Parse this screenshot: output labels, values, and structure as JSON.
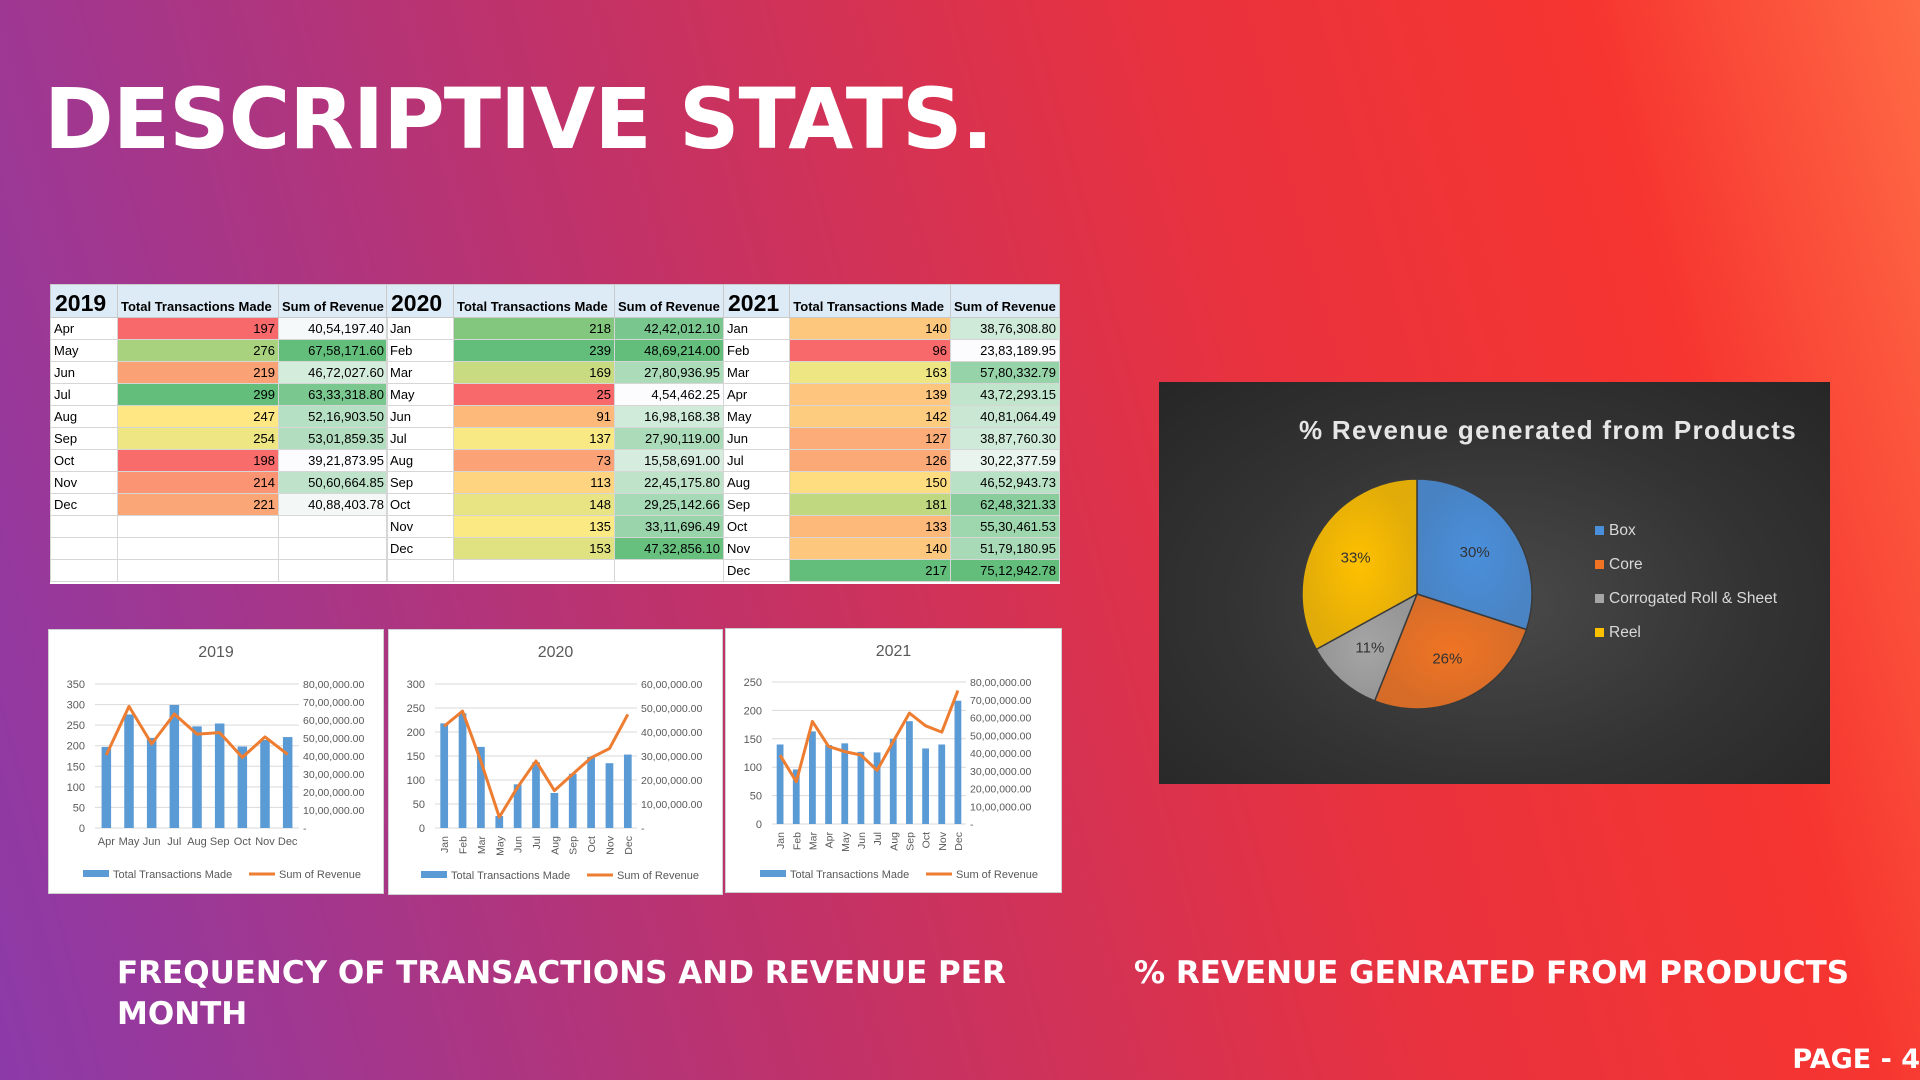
{
  "title": "DESCRIPTIVE STATS.",
  "caption_left": "FREQUENCY OF TRANSACTIONS AND REVENUE PER MONTH",
  "caption_right": "% REVENUE GENRATED FROM PRODUCTS",
  "page_label": "PAGE - 4",
  "table": {
    "col_tx": "Total Transactions Made",
    "col_rev": "Sum of Revenue",
    "years": [
      {
        "year": "2019",
        "rows": [
          [
            "Apr",
            197,
            "40,54,197.40"
          ],
          [
            "May",
            276,
            "67,58,171.60"
          ],
          [
            "Jun",
            219,
            "46,72,027.60"
          ],
          [
            "Jul",
            299,
            "63,33,318.80"
          ],
          [
            "Aug",
            247,
            "52,16,903.50"
          ],
          [
            "Sep",
            254,
            "53,01,859.35"
          ],
          [
            "Oct",
            198,
            "39,21,873.95"
          ],
          [
            "Nov",
            214,
            "50,60,664.85"
          ],
          [
            "Dec",
            221,
            "40,88,403.78"
          ]
        ]
      },
      {
        "year": "2020",
        "rows": [
          [
            "Jan",
            218,
            "42,42,012.10"
          ],
          [
            "Feb",
            239,
            "48,69,214.00"
          ],
          [
            "Mar",
            169,
            "27,80,936.95"
          ],
          [
            "May",
            25,
            "4,54,462.25"
          ],
          [
            "Jun",
            91,
            "16,98,168.38"
          ],
          [
            "Jul",
            137,
            "27,90,119.00"
          ],
          [
            "Aug",
            73,
            "15,58,691.00"
          ],
          [
            "Sep",
            113,
            "22,45,175.80"
          ],
          [
            "Oct",
            148,
            "29,25,142.66"
          ],
          [
            "Nov",
            135,
            "33,11,696.49"
          ],
          [
            "Dec",
            153,
            "47,32,856.10"
          ]
        ]
      },
      {
        "year": "2021",
        "rows": [
          [
            "Jan",
            140,
            "38,76,308.80"
          ],
          [
            "Feb",
            96,
            "23,83,189.95"
          ],
          [
            "Mar",
            163,
            "57,80,332.79"
          ],
          [
            "Apr",
            139,
            "43,72,293.15"
          ],
          [
            "May",
            142,
            "40,81,064.49"
          ],
          [
            "Jun",
            127,
            "38,87,760.30"
          ],
          [
            "Jul",
            126,
            "30,22,377.59"
          ],
          [
            "Aug",
            150,
            "46,52,943.73"
          ],
          [
            "Sep",
            181,
            "62,48,321.33"
          ],
          [
            "Oct",
            133,
            "55,30,461.53"
          ],
          [
            "Nov",
            140,
            "51,79,180.95"
          ],
          [
            "Dec",
            217,
            "75,12,942.78"
          ]
        ]
      }
    ]
  },
  "colors": {
    "bar": "#5b9bd5",
    "line": "#ed7d31",
    "pie": [
      "#4a8fdb",
      "#f07424",
      "#a5a5a5",
      "#ffc000"
    ]
  },
  "chart_data": [
    {
      "type": "bar",
      "title": "2019",
      "categories": [
        "Apr",
        "May",
        "Jun",
        "Jul",
        "Aug",
        "Sep",
        "Oct",
        "Nov",
        "Dec"
      ],
      "series": [
        {
          "name": "Total Transactions Made",
          "type": "bar",
          "axis": "left",
          "values": [
            197,
            276,
            219,
            299,
            247,
            254,
            198,
            214,
            221
          ]
        },
        {
          "name": "Sum of Revenue",
          "type": "line",
          "axis": "right",
          "values": [
            4054197.4,
            6758171.6,
            4672027.6,
            6333318.8,
            5216903.5,
            5301859.35,
            3921873.95,
            5060664.85,
            4088403.78
          ]
        }
      ],
      "ylim": [
        0,
        350
      ],
      "yticks": [
        "350",
        "300",
        "250",
        "200",
        "150",
        "100",
        "50",
        "0"
      ],
      "y2lim": [
        0,
        8000000
      ],
      "y2ticks": [
        "80,00,000.00",
        "70,00,000.00",
        "60,00,000.00",
        "50,00,000.00",
        "40,00,000.00",
        "30,00,000.00",
        "20,00,000.00",
        "10,00,000.00",
        "-"
      ],
      "legend": "bottom",
      "grid": true
    },
    {
      "type": "bar",
      "title": "2020",
      "categories": [
        "Jan",
        "Feb",
        "Mar",
        "May",
        "Jun",
        "Jul",
        "Aug",
        "Sep",
        "Oct",
        "Nov",
        "Dec"
      ],
      "series": [
        {
          "name": "Total Transactions Made",
          "type": "bar",
          "axis": "left",
          "values": [
            218,
            239,
            169,
            25,
            91,
            137,
            73,
            113,
            148,
            135,
            153
          ]
        },
        {
          "name": "Sum of Revenue",
          "type": "line",
          "axis": "right",
          "values": [
            4242012.1,
            4869214.0,
            2780936.95,
            454462.25,
            1698168.38,
            2790119.0,
            1558691.0,
            2245175.8,
            2925142.66,
            3311696.49,
            4732856.1
          ]
        }
      ],
      "ylim": [
        0,
        300
      ],
      "yticks": [
        "300",
        "250",
        "200",
        "150",
        "100",
        "50",
        "0"
      ],
      "y2lim": [
        0,
        6000000
      ],
      "y2ticks": [
        "60,00,000.00",
        "50,00,000.00",
        "40,00,000.00",
        "30,00,000.00",
        "20,00,000.00",
        "10,00,000.00",
        "-"
      ],
      "legend": "bottom",
      "grid": true
    },
    {
      "type": "bar",
      "title": "2021",
      "categories": [
        "Jan",
        "Feb",
        "Mar",
        "Apr",
        "May",
        "Jun",
        "Jul",
        "Aug",
        "Sep",
        "Oct",
        "Nov",
        "Dec"
      ],
      "series": [
        {
          "name": "Total Transactions Made",
          "type": "bar",
          "axis": "left",
          "values": [
            140,
            96,
            163,
            139,
            142,
            127,
            126,
            150,
            181,
            133,
            140,
            217
          ]
        },
        {
          "name": "Sum of Revenue",
          "type": "line",
          "axis": "right",
          "values": [
            3876308.8,
            2383189.95,
            5780332.79,
            4372293.15,
            4081064.49,
            3887760.3,
            3022377.59,
            4652943.73,
            6248321.33,
            5530461.53,
            5179180.95,
            7512942.78
          ]
        }
      ],
      "ylim": [
        0,
        250
      ],
      "yticks": [
        "250",
        "200",
        "150",
        "100",
        "50",
        "0"
      ],
      "y2lim": [
        0,
        8000000
      ],
      "y2ticks": [
        "80,00,000.00",
        "70,00,000.00",
        "60,00,000.00",
        "50,00,000.00",
        "40,00,000.00",
        "30,00,000.00",
        "20,00,000.00",
        "10,00,000.00",
        "-"
      ],
      "legend": "bottom",
      "grid": true
    },
    {
      "type": "pie",
      "title": "% Revenue generated from Products",
      "categories": [
        "Box",
        "Core",
        "Corrogated Roll & Sheet",
        "Reel"
      ],
      "values": [
        30,
        26,
        11,
        33
      ],
      "labels": [
        "30%",
        "26%",
        "11%",
        "33%"
      ],
      "legend": "right"
    }
  ]
}
